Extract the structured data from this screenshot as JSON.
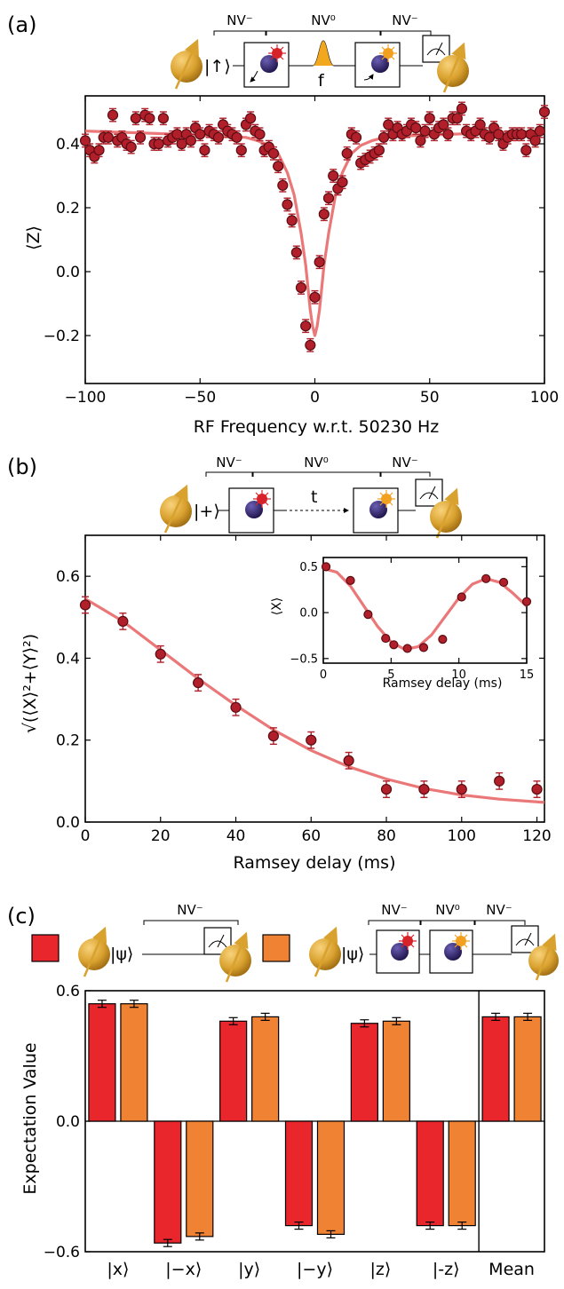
{
  "panels": {
    "a": {
      "label": "(a)",
      "xlabel": "RF Frequency w.r.t. 50230 Hz",
      "ylabel": "⟨Z⟩",
      "schematic": {
        "states": [
          "NV⁻",
          "NV⁰",
          "NV⁻"
        ],
        "ket": "|↑⟩",
        "pulse_label": "f"
      }
    },
    "b": {
      "label": "(b)",
      "xlabel": "Ramsey delay (ms)",
      "ylabel": "√(⟨X⟩²+⟨Y⟩²)",
      "inset_xlabel": "Ramsey delay (ms)",
      "inset_ylabel": "⟨X⟩",
      "schematic": {
        "states": [
          "NV⁻",
          "NV⁰",
          "NV⁻"
        ],
        "ket": "|+⟩",
        "delay_label": "t"
      }
    },
    "c": {
      "label": "(c)",
      "ylabel": "Expectation Value",
      "schematic_left": {
        "states": [
          "NV⁻"
        ],
        "ket": "|ψ⟩"
      },
      "schematic_right": {
        "states": [
          "NV⁻",
          "NV⁰",
          "NV⁻"
        ],
        "ket": "|ψ⟩"
      }
    }
  },
  "colors": {
    "point": "#b01f2a",
    "fit": "#e8696a",
    "red_bar": "#e8262b",
    "orange_bar": "#f08234",
    "bloch": "#d9a12e",
    "nucleus": "#2e1f66",
    "laser_red": "#d8222a",
    "laser_orange": "#f2a020",
    "pulse": "#f2a81e"
  },
  "chart_data": [
    {
      "type": "scatter",
      "panel": "a",
      "xlim": [
        -100,
        100
      ],
      "ylim": [
        -0.35,
        0.55
      ],
      "xticks": [
        -100,
        -50,
        0,
        50,
        100
      ],
      "xtick_labels": [
        "−100",
        "−50",
        "0",
        "50",
        "100"
      ],
      "yticks": [
        -0.2,
        0.0,
        0.2,
        0.4
      ],
      "ytick_labels": [
        "−0.2",
        "0.0",
        "0.2",
        "0.4"
      ],
      "x": [
        -100,
        -98,
        -96,
        -94,
        -92,
        -90,
        -88,
        -86,
        -84,
        -82,
        -80,
        -78,
        -76,
        -74,
        -72,
        -70,
        -68,
        -66,
        -64,
        -62,
        -60,
        -58,
        -56,
        -54,
        -52,
        -50,
        -48,
        -46,
        -44,
        -42,
        -40,
        -38,
        -36,
        -34,
        -32,
        -30,
        -28,
        -26,
        -24,
        -22,
        -20,
        -18,
        -16,
        -14,
        -12,
        -10,
        -8,
        -6,
        -4,
        -2,
        0,
        2,
        4,
        6,
        8,
        10,
        12,
        14,
        16,
        18,
        20,
        22,
        24,
        26,
        28,
        30,
        32,
        34,
        36,
        38,
        40,
        42,
        44,
        46,
        48,
        50,
        52,
        54,
        56,
        58,
        60,
        62,
        64,
        66,
        68,
        70,
        72,
        74,
        76,
        78,
        80,
        82,
        84,
        86,
        88,
        90,
        92,
        94,
        96,
        98,
        100
      ],
      "y": [
        0.41,
        0.38,
        0.36,
        0.38,
        0.42,
        0.42,
        0.49,
        0.41,
        0.42,
        0.4,
        0.39,
        0.48,
        0.42,
        0.49,
        0.48,
        0.4,
        0.4,
        0.48,
        0.41,
        0.42,
        0.43,
        0.4,
        0.43,
        0.41,
        0.45,
        0.43,
        0.38,
        0.44,
        0.43,
        0.42,
        0.46,
        0.44,
        0.43,
        0.42,
        0.38,
        0.46,
        0.48,
        0.44,
        0.43,
        0.38,
        0.39,
        0.37,
        0.33,
        0.27,
        0.21,
        0.16,
        0.06,
        -0.05,
        -0.17,
        -0.23,
        -0.08,
        0.03,
        0.18,
        0.23,
        0.3,
        0.26,
        0.28,
        0.37,
        0.43,
        0.42,
        0.34,
        0.35,
        0.36,
        0.37,
        0.38,
        0.42,
        0.46,
        0.43,
        0.45,
        0.43,
        0.44,
        0.46,
        0.45,
        0.41,
        0.44,
        0.48,
        0.43,
        0.45,
        0.46,
        0.43,
        0.48,
        0.48,
        0.51,
        0.44,
        0.43,
        0.44,
        0.46,
        0.43,
        0.42,
        0.45,
        0.43,
        0.4,
        0.42,
        0.43,
        0.43,
        0.43,
        0.38,
        0.43,
        0.41,
        0.44,
        0.5
      ],
      "yerr": 0.02,
      "fit": {
        "x": [
          -100,
          -80,
          -60,
          -40,
          -30,
          -25,
          -20,
          -16,
          -12,
          -9,
          -6,
          -4,
          -2,
          -1,
          0,
          1,
          2,
          4,
          6,
          9,
          12,
          16,
          20,
          25,
          30,
          40,
          60,
          80,
          100
        ],
        "y": [
          0.44,
          0.435,
          0.43,
          0.425,
          0.42,
          0.41,
          0.395,
          0.37,
          0.31,
          0.24,
          0.12,
          0.02,
          -0.12,
          -0.17,
          -0.2,
          -0.17,
          -0.12,
          0.02,
          0.12,
          0.24,
          0.31,
          0.37,
          0.395,
          0.41,
          0.42,
          0.425,
          0.43,
          0.435,
          0.44
        ]
      }
    },
    {
      "type": "scatter",
      "panel": "b",
      "xlim": [
        0,
        122
      ],
      "ylim": [
        0,
        0.7
      ],
      "xticks": [
        0,
        20,
        40,
        60,
        80,
        100,
        120
      ],
      "xtick_labels": [
        "0",
        "20",
        "40",
        "60",
        "80",
        "100",
        "120"
      ],
      "yticks": [
        0.0,
        0.2,
        0.4,
        0.6
      ],
      "ytick_labels": [
        "0.0",
        "0.2",
        "0.4",
        "0.6"
      ],
      "x": [
        0,
        10,
        20,
        30,
        40,
        50,
        60,
        70,
        80,
        90,
        100,
        110,
        120
      ],
      "y": [
        0.53,
        0.49,
        0.41,
        0.34,
        0.28,
        0.21,
        0.2,
        0.15,
        0.08,
        0.08,
        0.08,
        0.1,
        0.08
      ],
      "yerr": 0.02,
      "fit": {
        "x": [
          0,
          10,
          20,
          30,
          40,
          50,
          60,
          70,
          80,
          90,
          100,
          110,
          122
        ],
        "y": [
          0.545,
          0.49,
          0.42,
          0.35,
          0.285,
          0.225,
          0.175,
          0.135,
          0.105,
          0.082,
          0.066,
          0.056,
          0.048
        ]
      }
    },
    {
      "type": "scatter",
      "panel": "b-inset",
      "xlim": [
        0,
        15
      ],
      "ylim": [
        -0.55,
        0.6
      ],
      "xticks": [
        0,
        5,
        10,
        15
      ],
      "xtick_labels": [
        "0",
        "5",
        "10",
        "15"
      ],
      "yticks": [
        -0.5,
        0.0,
        0.5
      ],
      "ytick_labels": [
        "−0.5",
        "0.0",
        "0.5"
      ],
      "x": [
        0.2,
        2.0,
        3.3,
        4.6,
        5.2,
        6.2,
        7.4,
        8.8,
        10.2,
        12.0,
        13.3,
        15.0
      ],
      "y": [
        0.5,
        0.35,
        -0.02,
        -0.28,
        -0.35,
        -0.39,
        -0.38,
        -0.29,
        0.17,
        0.37,
        0.33,
        0.12
      ],
      "fit": {
        "x": [
          0,
          1,
          2,
          3,
          4,
          5,
          6,
          7,
          8,
          9,
          10,
          11,
          12,
          13,
          14,
          15
        ],
        "y": [
          0.48,
          0.44,
          0.29,
          0.07,
          -0.15,
          -0.32,
          -0.4,
          -0.37,
          -0.24,
          -0.04,
          0.16,
          0.31,
          0.37,
          0.33,
          0.21,
          0.07
        ]
      }
    },
    {
      "type": "bar",
      "panel": "c",
      "ylim": [
        -0.6,
        0.6
      ],
      "yticks": [
        -0.6,
        0.0,
        0.6
      ],
      "ytick_labels": [
        "−0.6",
        "0.0",
        "0.6"
      ],
      "categories": [
        "|x⟩",
        "|−x⟩",
        "|y⟩",
        "|−y⟩",
        "|z⟩",
        "|-z⟩",
        "Mean"
      ],
      "series": [
        {
          "values": [
            0.54,
            -0.56,
            0.46,
            -0.48,
            0.45,
            -0.48,
            0.48
          ]
        },
        {
          "values": [
            0.54,
            -0.53,
            0.48,
            -0.52,
            0.46,
            -0.48,
            0.48
          ]
        }
      ]
    }
  ]
}
